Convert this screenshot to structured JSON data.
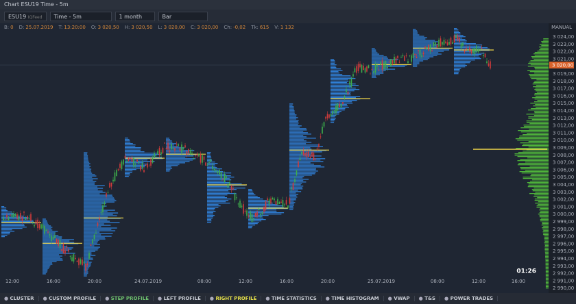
{
  "window": {
    "title": "Chart ESU19 Time - 5m"
  },
  "toolbar": {
    "symbol": "ESU19",
    "feed": "IQFeed",
    "timeframe": "Time - 5m",
    "period": "1 month",
    "chart_type": "Bar"
  },
  "info": [
    {
      "label": "B:",
      "value": "0"
    },
    {
      "label": "D:",
      "value": "25.07.2019"
    },
    {
      "label": "T:",
      "value": "13:20:00"
    },
    {
      "label": "O:",
      "value": "3 020,50"
    },
    {
      "label": "H:",
      "value": "3 020,50"
    },
    {
      "label": "L:",
      "value": "3 020,00"
    },
    {
      "label": "C:",
      "value": "3 020,00"
    },
    {
      "label": "Ch:",
      "value": "-0,02"
    },
    {
      "label": "Tk:",
      "value": "615"
    },
    {
      "label": "V:",
      "value": "1 132"
    }
  ],
  "price_axis": {
    "mode": "MANUAL",
    "current": "3 020,00",
    "ticks": [
      "3 024,00",
      "3 023,00",
      "3 022,00",
      "3 021,00",
      "3 020,00",
      "3 019,00",
      "3 018,00",
      "3 017,00",
      "3 016,00",
      "3 015,00",
      "3 014,00",
      "3 013,00",
      "3 012,00",
      "3 011,00",
      "3 010,00",
      "3 009,00",
      "3 008,00",
      "3 007,00",
      "3 006,00",
      "3 005,00",
      "3 004,00",
      "3 003,00",
      "3 002,00",
      "3 001,00",
      "3 000,00",
      "2 999,00",
      "2 998,00",
      "2 997,00",
      "2 996,00",
      "2 995,00",
      "2 994,00",
      "2 993,00",
      "2 992,00",
      "2 991,00",
      "2 990,00"
    ]
  },
  "time_axis": [
    "12:00",
    "16:00",
    "20:00",
    "24.07.2019",
    "08:00",
    "12:00",
    "16:00",
    "20:00",
    "25.07.2019",
    "08:00",
    "12:00",
    "16:00"
  ],
  "timer": "01:26",
  "bottom_bar": [
    "CLUSTER",
    "CUSTOM PROFILE",
    "STEP PROFILE",
    "LEFT PROFILE",
    "RIGHT PROFILE",
    "TIME STATISTICS",
    "TIME HISTOGRAM",
    "VWAP",
    "T&S",
    "POWER TRADES"
  ]
}
